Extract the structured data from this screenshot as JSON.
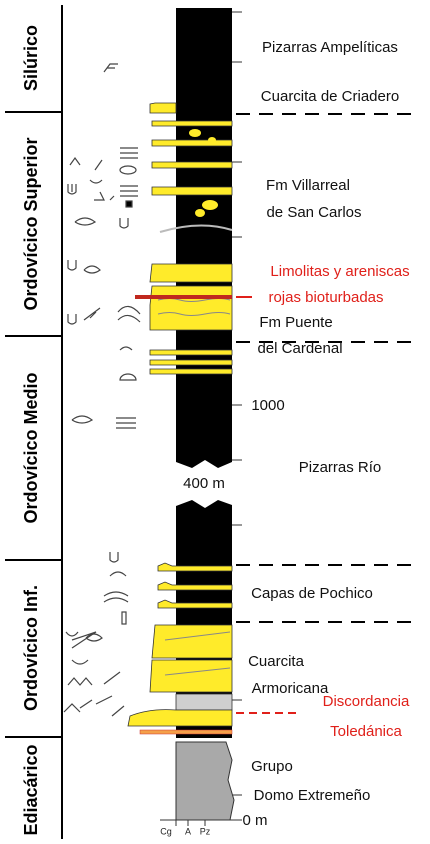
{
  "periods": [
    "Silúrico",
    "Ordovícico Superior",
    "Ordovícico Medio",
    "Ordovícico Inf.",
    "Ediacárico"
  ],
  "units": [
    {
      "lines": [
        "Pizarras Ampelíticas"
      ]
    },
    {
      "lines": [
        "Cuarcita de Criadero"
      ]
    },
    {
      "lines": [
        "Fm Villarreal",
        "de San Carlos"
      ]
    },
    {
      "lines": [
        "Limolitas y areniscas",
        "rojas bioturbadas"
      ]
    },
    {
      "lines": [
        "Fm Puente",
        "del Cardenal"
      ]
    },
    {
      "lines": [
        "Pizarras Río"
      ]
    },
    {
      "lines": [
        "Capas de Pochico"
      ]
    },
    {
      "lines": [
        "Cuarcita",
        "Armoricana"
      ]
    },
    {
      "lines": [
        "Discordancia",
        "Toledánica"
      ]
    },
    {
      "lines": [
        "Grupo",
        "Domo Extremeño"
      ]
    }
  ],
  "scale": {
    "mark": 1000,
    "gap": "400 m",
    "base": "0 m"
  },
  "grain_axis": [
    "Cg",
    "A",
    "Pz"
  ]
}
